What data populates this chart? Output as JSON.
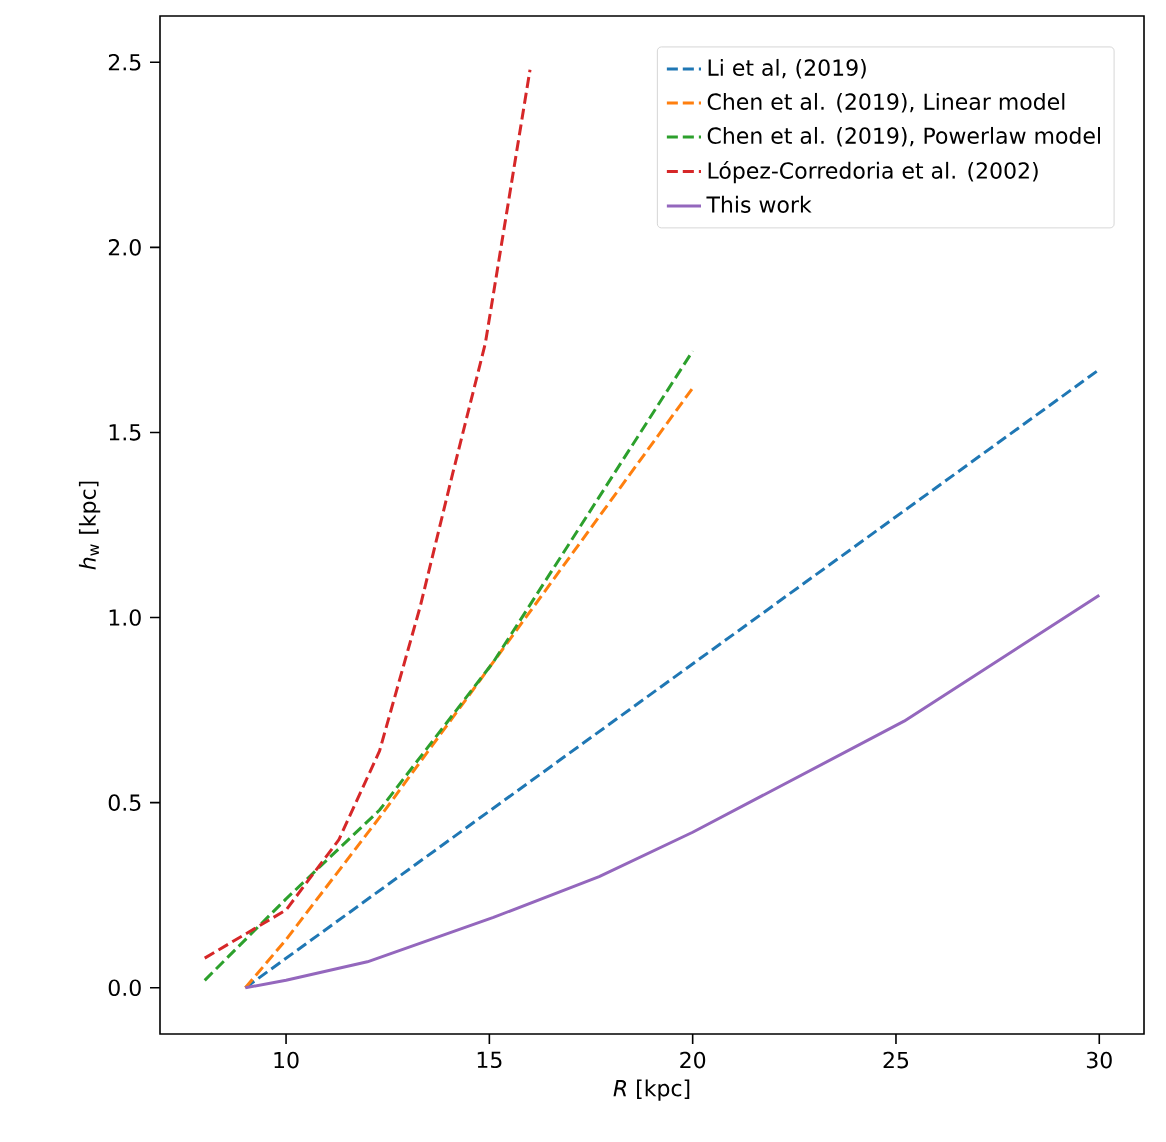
{
  "chart_data": {
    "type": "line",
    "xlabel": "*R* [kpc]",
    "ylabel": "*h*$_{w}$ [kpc]",
    "xlim": [
      6.9,
      31.1
    ],
    "ylim": [
      -0.125,
      2.625
    ],
    "xticks": [
      10,
      15,
      20,
      25,
      30
    ],
    "yticks": [
      {
        "value": 0,
        "label": "0.0"
      },
      {
        "value": 0.5,
        "label": "0.5"
      },
      {
        "value": 1,
        "label": "1.0"
      },
      {
        "value": 1.5,
        "label": "1.5"
      },
      {
        "value": 2,
        "label": "2.0"
      },
      {
        "value": 2.5,
        "label": "2.5"
      }
    ],
    "legend": "top right",
    "grid": false,
    "marker": "none",
    "series": [
      {
        "name": "Li et al, (2019)",
        "color": "#1f77b4",
        "line_style": "dashed",
        "x": [
          9,
          30
        ],
        "values": [
          0,
          1.67
        ]
      },
      {
        "name": "Chen et al. (2019), Linear model",
        "color": "#ff7f0e",
        "line_style": "dashed",
        "x": [
          9,
          10,
          12.3,
          15.1,
          20
        ],
        "values": [
          0,
          0.13,
          0.46,
          0.88,
          1.62
        ]
      },
      {
        "name": "Chen et al. (2019), Powerlaw model",
        "color": "#2ca02c",
        "line_style": "dashed",
        "x": [
          8,
          10,
          12.3,
          15.1,
          20
        ],
        "values": [
          0.02,
          0.24,
          0.48,
          0.88,
          1.72
        ]
      },
      {
        "name": "López-Corredoria et al. (2002)",
        "color": "#d62728",
        "line_style": "dashed",
        "x": [
          8,
          10,
          11.3,
          12.3,
          13.3,
          14.1,
          14.9,
          16
        ],
        "values": [
          0.08,
          0.21,
          0.4,
          0.64,
          1.03,
          1.39,
          1.74,
          2.48
        ]
      },
      {
        "name": "This work",
        "color": "#9467bd",
        "line_style": "solid",
        "x": [
          9,
          10,
          12,
          15.1,
          17.7,
          20,
          25.2,
          30
        ],
        "values": [
          0,
          0.02,
          0.07,
          0.19,
          0.3,
          0.42,
          0.72,
          1.06
        ]
      }
    ]
  }
}
